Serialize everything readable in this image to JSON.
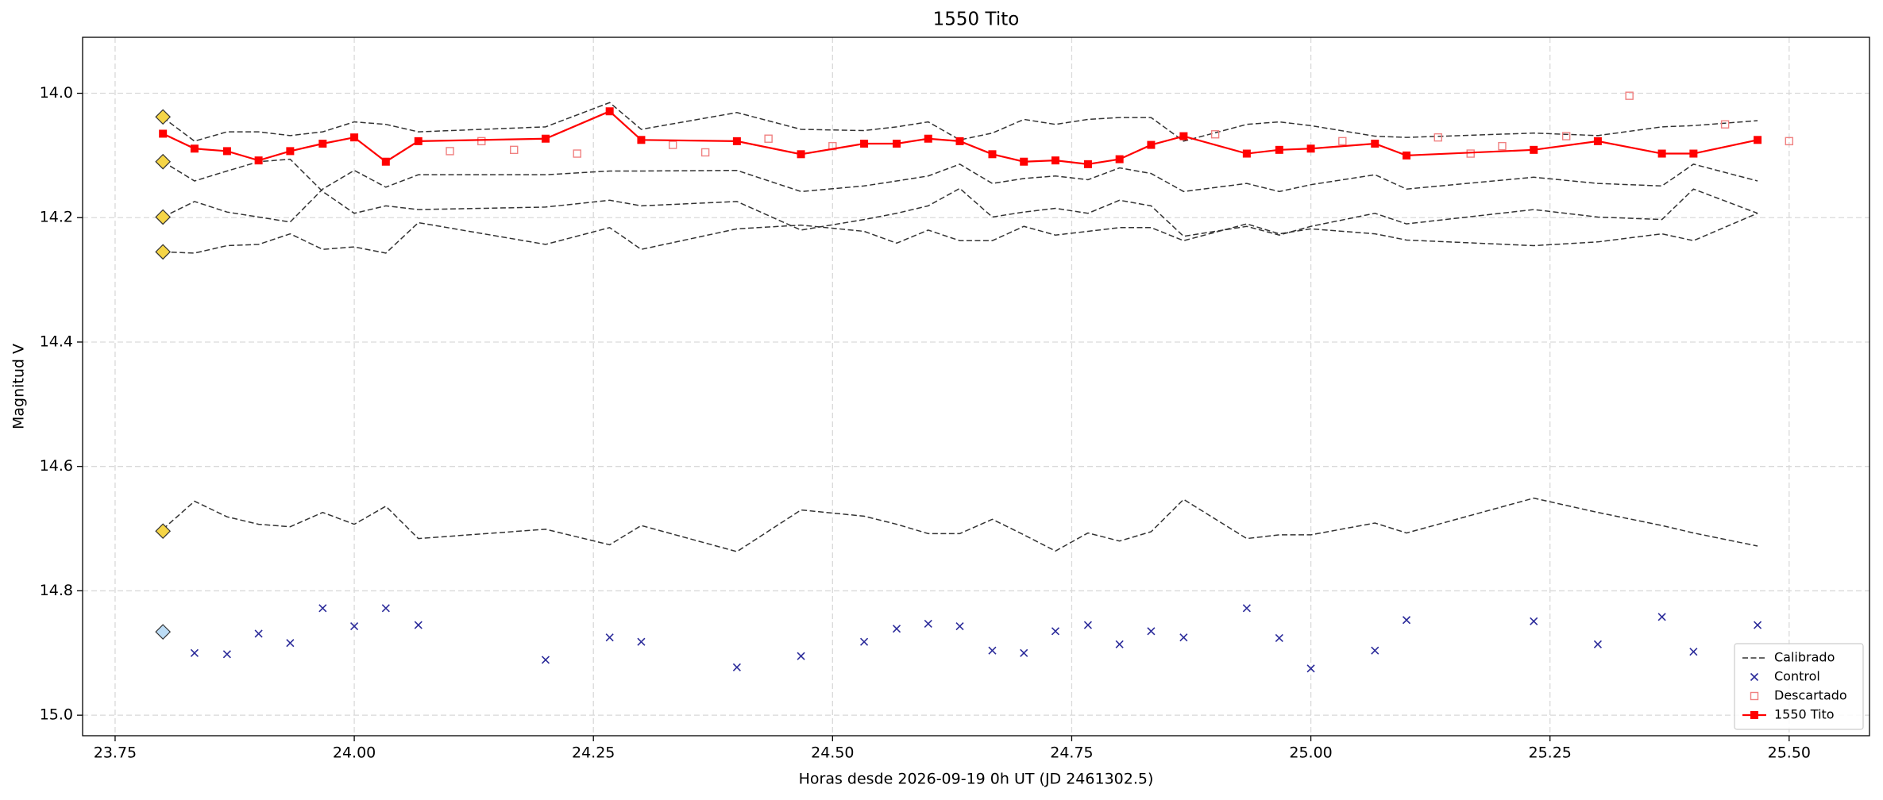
{
  "chart_data": {
    "type": "line",
    "title": "1550 Tito",
    "x_label": "Horas desde 2026-09-19 0h UT (JD 2461302.5)",
    "y_label": "Magnitud V",
    "xlim": [
      23.716,
      25.584
    ],
    "ylim": [
      13.91,
      15.033
    ],
    "y_inverted": true,
    "grid": true,
    "legend": "lower right",
    "xticks": [
      {
        "value": 23.75,
        "label": "23.75"
      },
      {
        "value": 24.0,
        "label": "24.00"
      },
      {
        "value": 24.25,
        "label": "24.25"
      },
      {
        "value": 24.5,
        "label": "24.50"
      },
      {
        "value": 24.75,
        "label": "24.75"
      },
      {
        "value": 25.0,
        "label": "25.00"
      },
      {
        "value": 25.25,
        "label": "25.25"
      },
      {
        "value": 25.5,
        "label": "25.50"
      }
    ],
    "yticks": [
      {
        "value": 14.0,
        "label": "14.0"
      },
      14.2,
      14.4,
      14.6,
      14.8,
      {
        "value": 15.0,
        "label": "15.0"
      }
    ],
    "series": [
      {
        "name": "Calibrado",
        "color": "#333333",
        "linestyle": "dashed",
        "marker": "none",
        "x": [
          23.8,
          23.833,
          23.867,
          23.9,
          23.933,
          23.967,
          24.0,
          24.033,
          24.067,
          24.2,
          24.267,
          24.3,
          24.4,
          24.467,
          24.533,
          24.567,
          24.6,
          24.633,
          24.667,
          24.7,
          24.733,
          24.767,
          24.8,
          24.833,
          24.867,
          24.933,
          24.967,
          25.0,
          25.067,
          25.1,
          25.233,
          25.3,
          25.367,
          25.4,
          25.467
        ],
        "lines": [
          [
            14.039,
            14.077,
            14.062,
            14.062,
            14.068,
            14.062,
            14.046,
            14.05,
            14.062,
            14.054,
            14.015,
            14.058,
            14.031,
            14.058,
            14.06,
            14.054,
            14.046,
            14.075,
            14.064,
            14.042,
            14.05,
            14.042,
            14.039,
            14.039,
            14.077,
            14.05,
            14.046,
            14.052,
            14.069,
            14.071,
            14.064,
            14.068,
            14.054,
            14.052,
            14.044
          ],
          [
            14.11,
            14.141,
            14.125,
            14.11,
            14.106,
            14.158,
            14.193,
            14.181,
            14.187,
            14.183,
            14.172,
            14.181,
            14.174,
            14.22,
            14.203,
            14.193,
            14.181,
            14.153,
            14.199,
            14.191,
            14.185,
            14.193,
            14.172,
            14.181,
            14.23,
            14.214,
            14.228,
            14.214,
            14.193,
            14.21,
            14.187,
            14.199,
            14.203,
            14.154,
            14.193
          ],
          [
            14.199,
            14.174,
            14.191,
            14.199,
            14.207,
            14.154,
            14.124,
            14.151,
            14.131,
            14.131,
            14.125,
            14.125,
            14.124,
            14.158,
            14.149,
            14.141,
            14.133,
            14.114,
            14.145,
            14.137,
            14.133,
            14.139,
            14.12,
            14.129,
            14.158,
            14.145,
            14.158,
            14.147,
            14.131,
            14.154,
            14.135,
            14.145,
            14.149,
            14.114,
            14.141
          ],
          [
            14.255,
            14.257,
            14.245,
            14.243,
            14.226,
            14.251,
            14.247,
            14.257,
            14.208,
            14.243,
            14.216,
            14.251,
            14.218,
            14.212,
            14.222,
            14.241,
            14.22,
            14.237,
            14.237,
            14.214,
            14.228,
            14.222,
            14.216,
            14.216,
            14.237,
            14.21,
            14.226,
            14.218,
            14.226,
            14.236,
            14.245,
            14.239,
            14.226,
            14.237,
            14.193
          ],
          [
            14.701,
            14.656,
            14.681,
            14.693,
            14.697,
            14.674,
            14.693,
            14.664,
            14.716,
            14.701,
            14.726,
            14.695,
            14.737,
            14.67,
            14.68,
            14.693,
            14.708,
            14.708,
            14.685,
            14.71,
            14.736,
            14.707,
            14.72,
            14.705,
            14.653,
            14.716,
            14.71,
            14.71,
            14.691,
            14.707,
            14.651,
            14.674,
            14.695,
            14.707,
            14.728
          ]
        ]
      },
      {
        "name": "Control",
        "color": "#2b2b9a",
        "linestyle": "none",
        "marker": "x",
        "x": [
          23.833,
          23.867,
          23.9,
          23.933,
          23.967,
          24.0,
          24.033,
          24.067,
          24.2,
          24.267,
          24.3,
          24.4,
          24.467,
          24.533,
          24.567,
          24.6,
          24.633,
          24.667,
          24.7,
          24.733,
          24.767,
          24.8,
          24.833,
          24.867,
          24.933,
          24.967,
          25.0,
          25.067,
          25.1,
          25.233,
          25.3,
          25.367,
          25.4,
          25.467
        ],
        "values": [
          14.9,
          14.902,
          14.869,
          14.884,
          14.828,
          14.857,
          14.828,
          14.855,
          14.911,
          14.875,
          14.882,
          14.923,
          14.905,
          14.882,
          14.861,
          14.853,
          14.857,
          14.896,
          14.9,
          14.865,
          14.855,
          14.886,
          14.865,
          14.875,
          14.828,
          14.876,
          14.925,
          14.896,
          14.847,
          14.849,
          14.886,
          14.842,
          14.898,
          14.855
        ]
      },
      {
        "name": "Descartado",
        "color": "#f08080",
        "linestyle": "none",
        "marker": "square-open",
        "x": [
          24.1,
          24.133,
          24.167,
          24.233,
          24.333,
          24.367,
          24.433,
          24.5,
          24.9,
          25.033,
          25.133,
          25.167,
          25.2,
          25.267,
          25.333,
          25.433,
          25.5
        ],
        "values": [
          14.093,
          14.077,
          14.091,
          14.097,
          14.083,
          14.095,
          14.073,
          14.085,
          14.066,
          14.077,
          14.071,
          14.097,
          14.085,
          14.069,
          14.004,
          14.05,
          14.077
        ]
      },
      {
        "name": "1550 Tito",
        "color": "#ff0000",
        "linestyle": "solid",
        "marker": "square",
        "x": [
          23.8,
          23.833,
          23.867,
          23.9,
          23.933,
          23.967,
          24.0,
          24.033,
          24.067,
          24.2,
          24.267,
          24.3,
          24.4,
          24.467,
          24.533,
          24.567,
          24.6,
          24.633,
          24.667,
          24.7,
          24.733,
          24.767,
          24.8,
          24.833,
          24.867,
          24.933,
          24.967,
          25.0,
          25.067,
          25.1,
          25.233,
          25.3,
          25.367,
          25.4,
          25.467
        ],
        "values": [
          14.065,
          14.089,
          14.093,
          14.108,
          14.093,
          14.081,
          14.071,
          14.11,
          14.077,
          14.073,
          14.029,
          14.075,
          14.077,
          14.098,
          14.081,
          14.081,
          14.073,
          14.077,
          14.098,
          14.11,
          14.108,
          14.114,
          14.106,
          14.083,
          14.069,
          14.097,
          14.091,
          14.089,
          14.081,
          14.1,
          14.091,
          14.077,
          14.097,
          14.097,
          14.075
        ]
      }
    ],
    "reference_markers": {
      "marker": "diamond",
      "x": [
        23.8,
        23.8,
        23.8,
        23.8,
        23.8,
        23.8
      ],
      "values": [
        14.038,
        14.11,
        14.199,
        14.255,
        14.704,
        14.866
      ],
      "colors": [
        "#f5d547",
        "#f5d547",
        "#f5d547",
        "#f5d547",
        "#f5d547",
        "#bcdcf5"
      ]
    }
  }
}
